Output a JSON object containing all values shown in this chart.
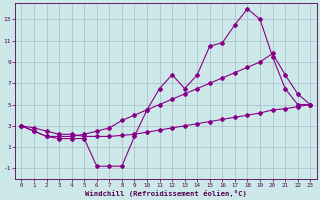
{
  "xlabel": "Windchill (Refroidissement éolien,°C)",
  "background_color": "#cce8e8",
  "grid_color": "#aabbcc",
  "line_color": "#880088",
  "xlim": [
    -0.5,
    23.5
  ],
  "ylim": [
    -2,
    14.5
  ],
  "xticks": [
    0,
    1,
    2,
    3,
    4,
    5,
    6,
    7,
    8,
    9,
    10,
    11,
    12,
    13,
    14,
    15,
    16,
    17,
    18,
    19,
    20,
    21,
    22,
    23
  ],
  "yticks": [
    -1,
    1,
    3,
    5,
    7,
    9,
    11,
    13
  ],
  "line1_x": [
    0,
    1,
    2,
    3,
    4,
    5,
    6,
    7,
    8,
    9,
    10,
    11,
    12,
    13,
    14,
    15,
    16,
    17,
    18,
    19,
    20,
    21,
    22,
    23
  ],
  "line1_y": [
    3.0,
    2.5,
    2.0,
    1.8,
    1.8,
    1.8,
    -0.8,
    -0.8,
    -0.8,
    2.0,
    4.5,
    6.5,
    7.8,
    6.5,
    7.8,
    10.5,
    10.8,
    12.5,
    14.0,
    13.0,
    9.5,
    6.5,
    5.0,
    5.0
  ],
  "line2_x": [
    0,
    1,
    2,
    3,
    4,
    5,
    6,
    7,
    8,
    9,
    10,
    11,
    12,
    13,
    14,
    15,
    16,
    17,
    18,
    19,
    20,
    21,
    22,
    23
  ],
  "line2_y": [
    3.0,
    2.5,
    2.0,
    2.0,
    2.0,
    2.2,
    2.5,
    2.8,
    3.5,
    4.0,
    4.5,
    5.0,
    5.5,
    6.0,
    6.5,
    7.0,
    7.5,
    8.0,
    8.5,
    9.0,
    9.8,
    7.8,
    6.0,
    5.0
  ],
  "line3_x": [
    0,
    1,
    2,
    3,
    4,
    5,
    6,
    7,
    8,
    9,
    10,
    11,
    12,
    13,
    14,
    15,
    16,
    17,
    18,
    19,
    20,
    21,
    22,
    23
  ],
  "line3_y": [
    3.0,
    2.8,
    2.5,
    2.2,
    2.2,
    2.0,
    2.0,
    2.0,
    2.1,
    2.2,
    2.4,
    2.6,
    2.8,
    3.0,
    3.2,
    3.4,
    3.6,
    3.8,
    4.0,
    4.2,
    4.5,
    4.6,
    4.8,
    5.0
  ]
}
